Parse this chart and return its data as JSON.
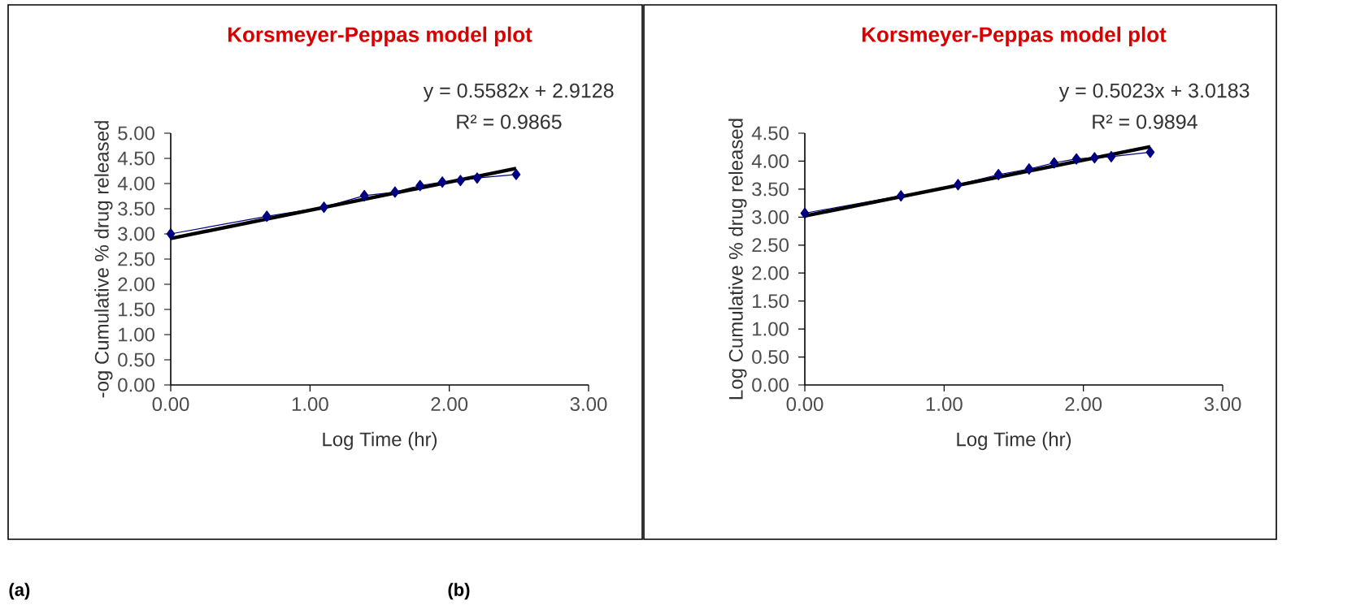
{
  "chart_data": [
    {
      "type": "line",
      "title": "Korsmeyer-Peppas model plot",
      "xlabel": "Log Time (hr)",
      "ylabel": "-og Cumulative  % drug released",
      "annotations": [
        "y = 0.5582x  + 2.9128",
        "R² = 0.9865",
        "(a)"
      ],
      "xlim": [
        0,
        3
      ],
      "xticks": [
        {
          "value": 0,
          "label": "0.00"
        },
        {
          "value": 1,
          "label": "1.00"
        },
        {
          "value": 2,
          "label": "2.00"
        },
        {
          "value": 3,
          "label": "3.00"
        }
      ],
      "ylim": [
        0,
        5
      ],
      "yticks": [
        {
          "value": 0,
          "label": "0.00"
        },
        {
          "value": 0.5,
          "label": "0.50"
        },
        {
          "value": 1,
          "label": "1.00"
        },
        {
          "value": 1.5,
          "label": "1.50"
        },
        {
          "value": 2,
          "label": "2.00"
        },
        {
          "value": 2.5,
          "label": "2.50"
        },
        {
          "value": 3,
          "label": "3.00"
        },
        {
          "value": 3.5,
          "label": "3.50"
        },
        {
          "value": 4,
          "label": "4.00"
        },
        {
          "value": 4.5,
          "label": "4.50"
        },
        {
          "value": 5,
          "label": "5.00"
        }
      ],
      "grid": false,
      "line_style": "solid",
      "series": [
        {
          "type": "line",
          "marker": "diamond",
          "color": "#000080",
          "x": [
            0,
            0.69,
            1.1,
            1.39,
            1.61,
            1.79,
            1.95,
            2.08,
            2.2,
            2.48
          ],
          "values": [
            3.0,
            3.35,
            3.53,
            3.76,
            3.83,
            3.96,
            4.03,
            4.06,
            4.11,
            4.18
          ]
        },
        {
          "type": "line",
          "marker": "none",
          "color": "#000000",
          "x": [
            0,
            2.48
          ],
          "values": [
            2.91,
            4.3
          ]
        }
      ]
    },
    {
      "type": "line",
      "title": "Korsmeyer-Peppas model plot",
      "xlabel": "Log Time (hr)",
      "ylabel": "Log Cumulative  % drug released",
      "annotations": [
        "y = 0.5023x + 3.0183",
        "R² = 0.9894",
        "(b)"
      ],
      "xlim": [
        0,
        3
      ],
      "xticks": [
        {
          "value": 0,
          "label": "0.00"
        },
        {
          "value": 1,
          "label": "1.00"
        },
        {
          "value": 2,
          "label": "2.00"
        },
        {
          "value": 3,
          "label": "3.00"
        }
      ],
      "ylim": [
        0,
        4.5
      ],
      "yticks": [
        {
          "value": 0,
          "label": "0.00"
        },
        {
          "value": 0.5,
          "label": "0.50"
        },
        {
          "value": 1,
          "label": "1.00"
        },
        {
          "value": 1.5,
          "label": "1.50"
        },
        {
          "value": 2,
          "label": "2.00"
        },
        {
          "value": 2.5,
          "label": "2.50"
        },
        {
          "value": 3,
          "label": "3.00"
        },
        {
          "value": 3.5,
          "label": "3.50"
        },
        {
          "value": 4,
          "label": "4.00"
        },
        {
          "value": 4.5,
          "label": "4.50"
        }
      ],
      "grid": false,
      "line_style": "solid",
      "series": [
        {
          "type": "line",
          "marker": "diamond",
          "color": "#000080",
          "x": [
            0,
            0.69,
            1.1,
            1.39,
            1.61,
            1.79,
            1.95,
            2.08,
            2.2,
            2.48
          ],
          "values": [
            3.07,
            3.38,
            3.58,
            3.76,
            3.86,
            3.97,
            4.04,
            4.06,
            4.08,
            4.16
          ]
        },
        {
          "type": "line",
          "marker": "none",
          "color": "#000000",
          "x": [
            0,
            2.48
          ],
          "values": [
            3.02,
            4.26
          ]
        }
      ]
    }
  ]
}
